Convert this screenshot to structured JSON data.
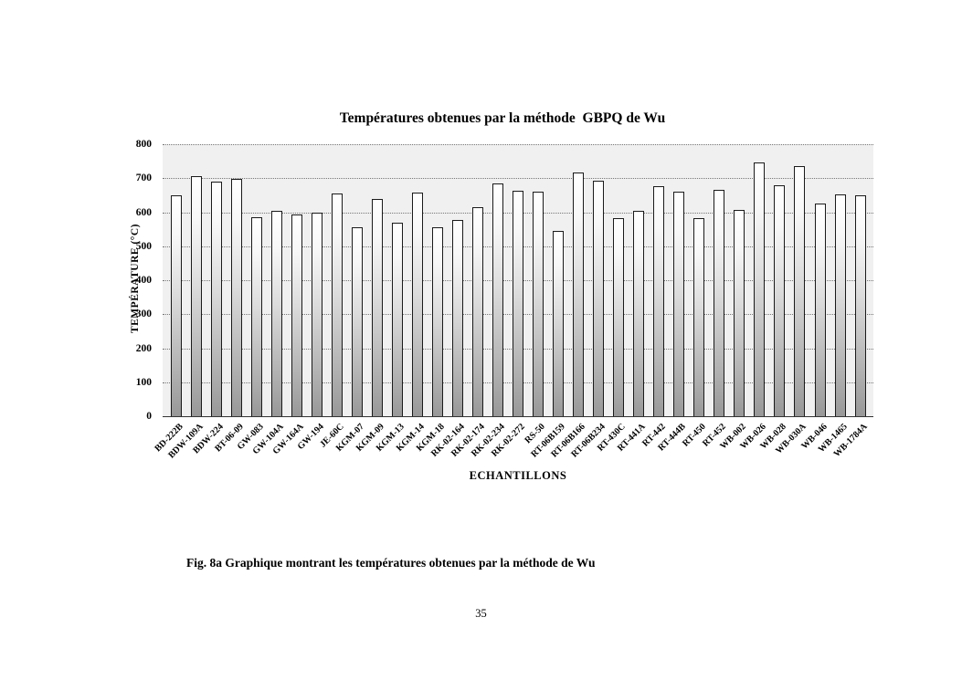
{
  "page": {
    "caption": "Fig. 8a Graphique montrant les températures obtenues par la méthode de Wu",
    "page_number": "35"
  },
  "chart_data": {
    "type": "bar",
    "title": "Températures obtenues par la méthode  GBPQ de Wu",
    "xlabel": "ECHANTILLONS",
    "ylabel": "TEMPÉRATURE (°C)",
    "ylim": [
      0,
      800
    ],
    "ytick_step": 100,
    "grid": "horizontal dotted lines at every 100, legend none",
    "colors": {
      "plot_background": "#f0f0f0",
      "bar_gradient_top": "#ffffff",
      "bar_gradient_bottom": "#999999",
      "bar_border": "#1a1a1a",
      "gridline": "#777777"
    },
    "categories": [
      "BD-222B",
      "BDW-109A",
      "BDW-224",
      "BT-06-09",
      "GW-083",
      "GW-104A",
      "GW-164A",
      "GW-194",
      "JE-60C",
      "KGM-07",
      "KGM-09",
      "KGM-13",
      "KGM-14",
      "KGM-18",
      "RK-02-164",
      "RK-02-174",
      "RK-02-234",
      "RK-02-272",
      "RS-50",
      "RT-06B159",
      "RT-06B166",
      "RT-06B234",
      "RT-430C",
      "RT-441A",
      "RT-442",
      "RT-444B",
      "RT-450",
      "RT-452",
      "WB-002",
      "WB-026",
      "WB-028",
      "WB-030A",
      "WB-046",
      "WB-1465",
      "WB-1784A"
    ],
    "values": [
      650,
      705,
      690,
      698,
      585,
      603,
      593,
      598,
      654,
      556,
      638,
      569,
      658,
      556,
      577,
      614,
      686,
      663,
      660,
      544,
      718,
      693,
      583,
      605,
      677,
      661,
      583,
      666,
      608,
      747,
      678,
      736,
      625,
      652,
      650
    ]
  }
}
